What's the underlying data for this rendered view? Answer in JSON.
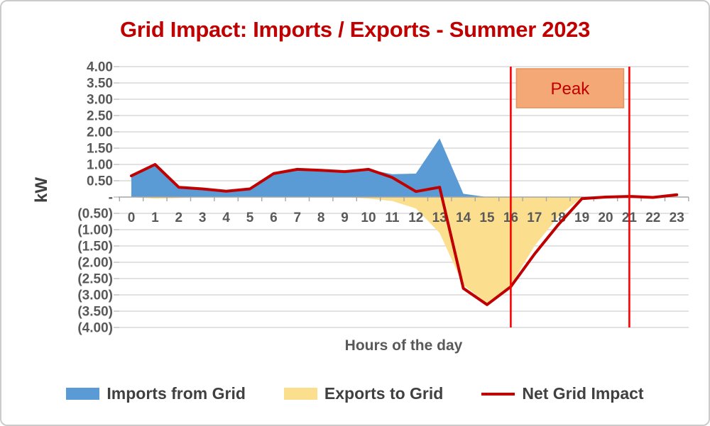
{
  "chart_data": {
    "type": "area",
    "title": "Grid Impact: Imports / Exports - Summer 2023",
    "title_color": "#C00000",
    "xlabel": "Hours of the day",
    "ylabel": "kW",
    "categories": [
      "0",
      "1",
      "2",
      "3",
      "4",
      "5",
      "6",
      "7",
      "8",
      "9",
      "10",
      "11",
      "12",
      "13",
      "14",
      "15",
      "16",
      "17",
      "18",
      "19",
      "20",
      "21",
      "22",
      "23"
    ],
    "series": [
      {
        "name": "Imports from Grid",
        "type": "area",
        "color": "#5B9BD5",
        "values": [
          0.65,
          1.0,
          0.3,
          0.25,
          0.18,
          0.25,
          0.72,
          0.85,
          0.82,
          0.78,
          0.85,
          0.7,
          0.72,
          1.8,
          0.1,
          0,
          0,
          0,
          0,
          0,
          0,
          0,
          0,
          0
        ]
      },
      {
        "name": "Exports to Grid",
        "type": "area",
        "color": "#FBDF8E",
        "values": [
          0,
          -0.05,
          -0.03,
          0,
          0,
          0,
          0,
          0,
          0,
          0,
          -0.05,
          -0.12,
          -0.35,
          -1.1,
          -2.7,
          -3.25,
          -2.7,
          -1.5,
          -0.6,
          0,
          0,
          0,
          0,
          0
        ]
      },
      {
        "name": "Net Grid Impact",
        "type": "line",
        "color": "#C00000",
        "values": [
          0.65,
          1.0,
          0.3,
          0.25,
          0.18,
          0.25,
          0.72,
          0.85,
          0.82,
          0.78,
          0.85,
          0.6,
          0.17,
          0.3,
          -2.8,
          -3.3,
          -2.75,
          -1.75,
          -0.85,
          -0.05,
          0.0,
          0.02,
          -0.01,
          0.07
        ]
      }
    ],
    "ylim": [
      -4,
      4
    ],
    "ytick_step": 0.5,
    "ytick_labels": [
      "4.00",
      "3.50",
      "3.00",
      "2.50",
      "2.00",
      "1.50",
      "1.00",
      "0.50",
      "-",
      "(0.50)",
      "(1.00)",
      "(1.50)",
      "(2.00)",
      "(2.50)",
      "(3.00)",
      "(3.50)",
      "(4.00)"
    ],
    "grid": "horizontal",
    "gridline_color": "#D9D9D9",
    "axis_line_color": "#A6A6A6",
    "axis_text_color": "#595959",
    "legend_position": "bottom",
    "annotations": {
      "peak_band": {
        "label": "Peak",
        "x_start": 16,
        "x_end": 21,
        "line_color": "#FF0000",
        "box_fill": "#F4A876",
        "box_border": "#E8925E",
        "text_color": "#C00000"
      }
    }
  }
}
